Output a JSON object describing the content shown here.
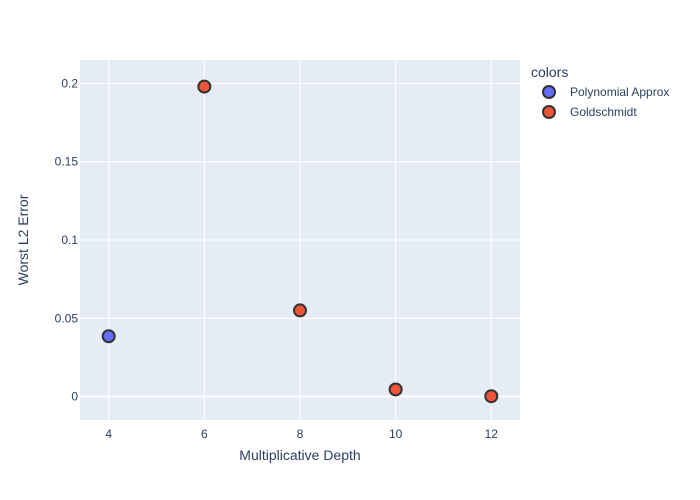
{
  "chart_data": {
    "type": "scatter",
    "xlabel": "Multiplicative Depth",
    "ylabel": "Worst L2 Error",
    "xlim": [
      3.4,
      12.6
    ],
    "ylim": [
      -0.015,
      0.215
    ],
    "x_ticks": [
      4,
      6,
      8,
      10,
      12
    ],
    "x_tick_labels": [
      "4",
      "6",
      "8",
      "10",
      "12"
    ],
    "y_ticks": [
      0,
      0.05,
      0.1,
      0.15,
      0.2
    ],
    "y_tick_labels": [
      "0",
      "0.05",
      "0.1",
      "0.15",
      "0.2"
    ],
    "grid": true,
    "legend": {
      "title": "colors",
      "placement": "top-right-outside"
    },
    "series": [
      {
        "name": "Polynomial Approx",
        "color": "#636efa",
        "points": [
          {
            "x": 4,
            "y": 0.0385
          }
        ]
      },
      {
        "name": "Goldschmidt",
        "color": "#ef553b",
        "points": [
          {
            "x": 6,
            "y": 0.198
          },
          {
            "x": 8,
            "y": 0.055
          },
          {
            "x": 10,
            "y": 0.0045
          },
          {
            "x": 12,
            "y": 0.0002
          }
        ]
      }
    ],
    "colors": {
      "plot_bg": "#e5ecf6",
      "grid": "#ffffff",
      "text": "#2a3f5f",
      "marker_line": "#333333"
    }
  }
}
